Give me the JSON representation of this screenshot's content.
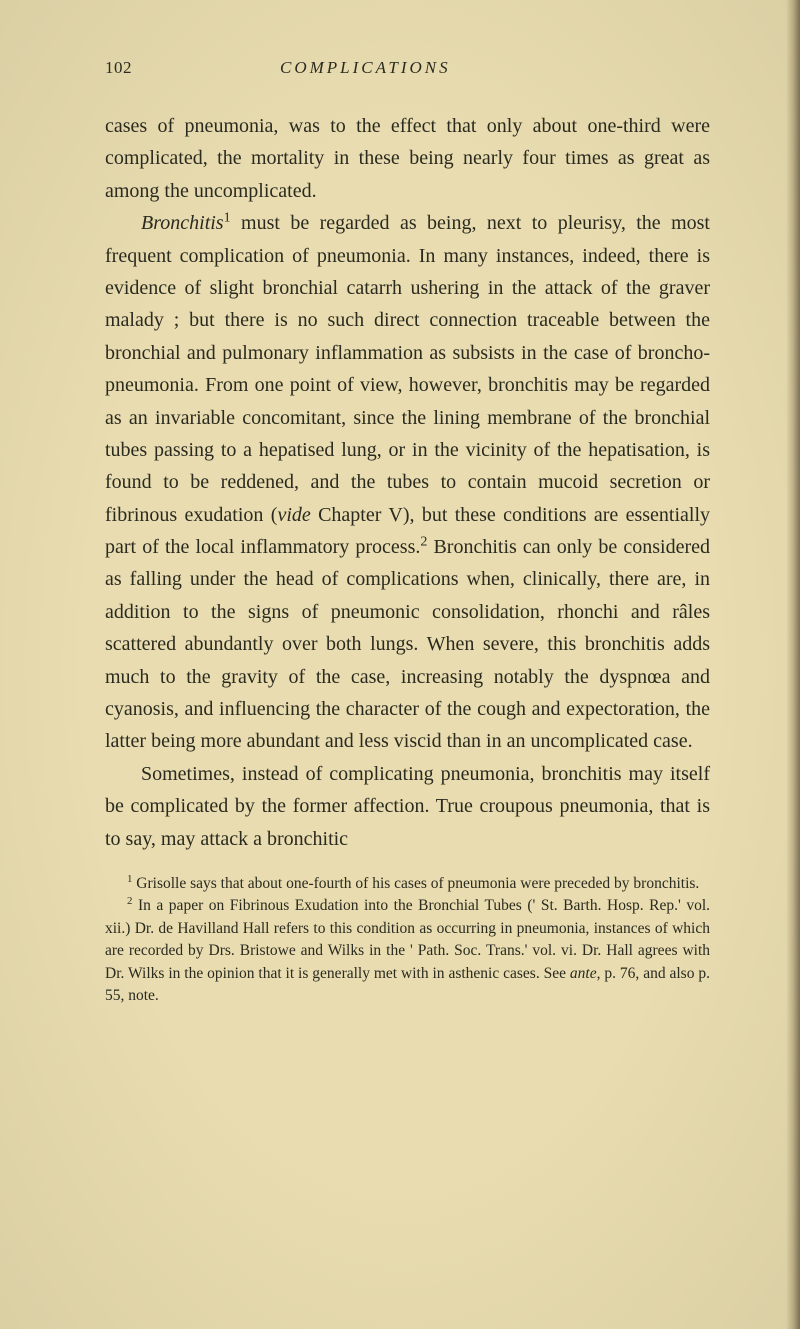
{
  "page": {
    "number": "102",
    "running_title": "COMPLICATIONS",
    "background_color": "#e8dcb0",
    "text_color": "#2a2a1f",
    "body_font_size": 20,
    "footnote_font_size": 15.5
  },
  "paragraphs": {
    "p1": "cases of pneumonia, was to the effect that only about one-third were complicated, the mortality in these being nearly four times as great as among the uncomplicated.",
    "p2_pre": "Bronchitis",
    "p2_sup": "1",
    "p2_rest": " must be regarded as being, next to pleurisy, the most frequent complication of pneumonia. In many instances, indeed, there is evidence of slight bronchial catarrh ushering in the attack of the graver malady ; but there is no such direct connection traceable between the bronchial and pulmonary inflammation as subsists in the case of broncho-pneumonia. From one point of view, however, bronchitis may be regarded as an invariable concomitant, since the lining membrane of the bronchial tubes passing to a hepatised lung, or in the vicinity of the hepatisation, is found to be reddened, and the tubes to contain mucoid secretion or fibrinous exudation (",
    "p2_vide": "vide",
    "p2_mid": " Chapter V), but these conditions are essentially part of the local inflammatory process.",
    "p2_sup2": "2",
    "p2_end": " Bronchitis can only be considered as falling under the head of complications when, clinically, there are, in addition to the signs of pneumonic consolidation, rhonchi and râles scattered abundantly over both lungs. When severe, this bronchitis adds much to the gravity of the case, increasing notably the dyspnœa and cyanosis, and influencing the character of the cough and expectoration, the latter being more abundant and less viscid than in an uncomplicated case.",
    "p3": "Sometimes, instead of complicating pneumonia, bronchitis may itself be complicated by the former affection. True croupous pneumonia, that is to say, may attack a bronchitic"
  },
  "footnotes": {
    "f1_sup": "1",
    "f1": " Grisolle says that about one-fourth of his cases of pneumonia were preceded by bronchitis.",
    "f2_sup": "2",
    "f2_a": " In a paper on Fibrinous Exudation into the Bronchial Tubes (' St. Barth. Hosp. Rep.' vol. xii.) Dr. de Havilland Hall refers to this condition as occurring in pneumonia, instances of which are recorded by Drs. Bristowe and Wilks in the ' Path. Soc. Trans.' vol. vi. Dr. Hall agrees with Dr. Wilks in the opinion that it is generally met with in asthenic cases. See ",
    "f2_ante": "ante",
    "f2_b": ", p. 76, and also p. 55, note."
  }
}
